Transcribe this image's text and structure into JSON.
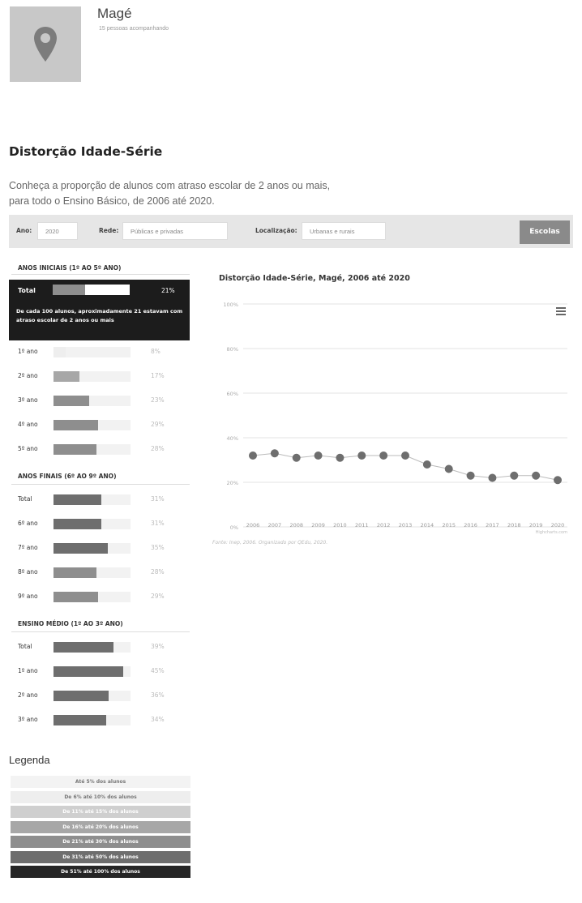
{
  "city": {
    "name": "Magé",
    "followers": "15 pessoas acompanhando"
  },
  "section": {
    "title": "Distorção Idade-Série",
    "description": "Conheça a proporção de alunos com atraso escolar de 2 anos ou mais, para todo o Ensino Básico, de 2006 até 2020."
  },
  "filters": {
    "ano_label": "Ano:",
    "ano_value": "2020",
    "rede_label": "Rede:",
    "rede_value": "Públicas e privadas",
    "localizacao_label": "Localização:",
    "localizacao_value": "Urbanas e rurais",
    "escolas_button": "Escolas"
  },
  "groups": {
    "iniciais": {
      "title": "ANOS INICIAIS (1º AO 5º ANO)",
      "total": {
        "label": "Total",
        "value": 21,
        "pct": "21%",
        "description": "De cada 100 alunos, aproximadamente 21 estavam com atraso escolar de 2 anos ou mais"
      },
      "rows": [
        {
          "label": "1º ano",
          "value": 8,
          "pct": "8%",
          "color": "#eeeeee"
        },
        {
          "label": "2º ano",
          "value": 17,
          "pct": "17%",
          "color": "#a7a7a7"
        },
        {
          "label": "3º ano",
          "value": 23,
          "pct": "23%",
          "color": "#8e8e8e"
        },
        {
          "label": "4º ano",
          "value": 29,
          "pct": "29%",
          "color": "#8e8e8e"
        },
        {
          "label": "5º ano",
          "value": 28,
          "pct": "28%",
          "color": "#8e8e8e"
        }
      ]
    },
    "finais": {
      "title": "ANOS FINAIS (6º AO 9º ANO)",
      "rows": [
        {
          "label": "Total",
          "value": 31,
          "pct": "31%",
          "color": "#6e6e6e"
        },
        {
          "label": "6º ano",
          "value": 31,
          "pct": "31%",
          "color": "#6e6e6e"
        },
        {
          "label": "7º ano",
          "value": 35,
          "pct": "35%",
          "color": "#6e6e6e"
        },
        {
          "label": "8º ano",
          "value": 28,
          "pct": "28%",
          "color": "#8e8e8e"
        },
        {
          "label": "9º ano",
          "value": 29,
          "pct": "29%",
          "color": "#8e8e8e"
        }
      ]
    },
    "medio": {
      "title": "ENSINO MÉDIO (1º AO 3º ANO)",
      "rows": [
        {
          "label": "Total",
          "value": 39,
          "pct": "39%",
          "color": "#6e6e6e"
        },
        {
          "label": "1º ano",
          "value": 45,
          "pct": "45%",
          "color": "#6e6e6e"
        },
        {
          "label": "2º ano",
          "value": 36,
          "pct": "36%",
          "color": "#6e6e6e"
        },
        {
          "label": "3º ano",
          "value": 34,
          "pct": "34%",
          "color": "#6e6e6e"
        }
      ]
    }
  },
  "legend": {
    "title": "Legenda",
    "items": [
      {
        "label": "Até 5% dos alunos",
        "bg": "#f3f3f3",
        "fg": "#777777"
      },
      {
        "label": "De 6% até 10% dos alunos",
        "bg": "#eeeeee",
        "fg": "#777777"
      },
      {
        "label": "De 11% até 15% dos alunos",
        "bg": "#cfcfcf",
        "fg": "#ffffff"
      },
      {
        "label": "De 16% até 20% dos alunos",
        "bg": "#a7a7a7",
        "fg": "#ffffff"
      },
      {
        "label": "De 21% até 30% dos alunos",
        "bg": "#8e8e8e",
        "fg": "#ffffff"
      },
      {
        "label": "De 31% até 50% dos alunos",
        "bg": "#6e6e6e",
        "fg": "#ffffff"
      },
      {
        "label": "De 51% até 100% dos alunos",
        "bg": "#262626",
        "fg": "#ffffff"
      }
    ]
  },
  "chart_data": {
    "type": "line",
    "title": "Distorção Idade-Série, Magé, 2006 até 2020",
    "x": [
      "2006",
      "2007",
      "2008",
      "2009",
      "2010",
      "2011",
      "2012",
      "2013",
      "2014",
      "2015",
      "2016",
      "2017",
      "2018",
      "2019",
      "2020"
    ],
    "series": [
      {
        "values": [
          32,
          33,
          31,
          32,
          31,
          32,
          32,
          32,
          28,
          26,
          23,
          22,
          23,
          23,
          21
        ],
        "color": "#6e6e6e"
      }
    ],
    "ylim": [
      0,
      100
    ],
    "y_ticks": [
      "0%",
      "20%",
      "40%",
      "60%",
      "80%",
      "100%"
    ],
    "grid": true,
    "source": "Fonte: Inep, 2006. Organizado por QEdu, 2020.",
    "credits": "Highcharts.com"
  }
}
